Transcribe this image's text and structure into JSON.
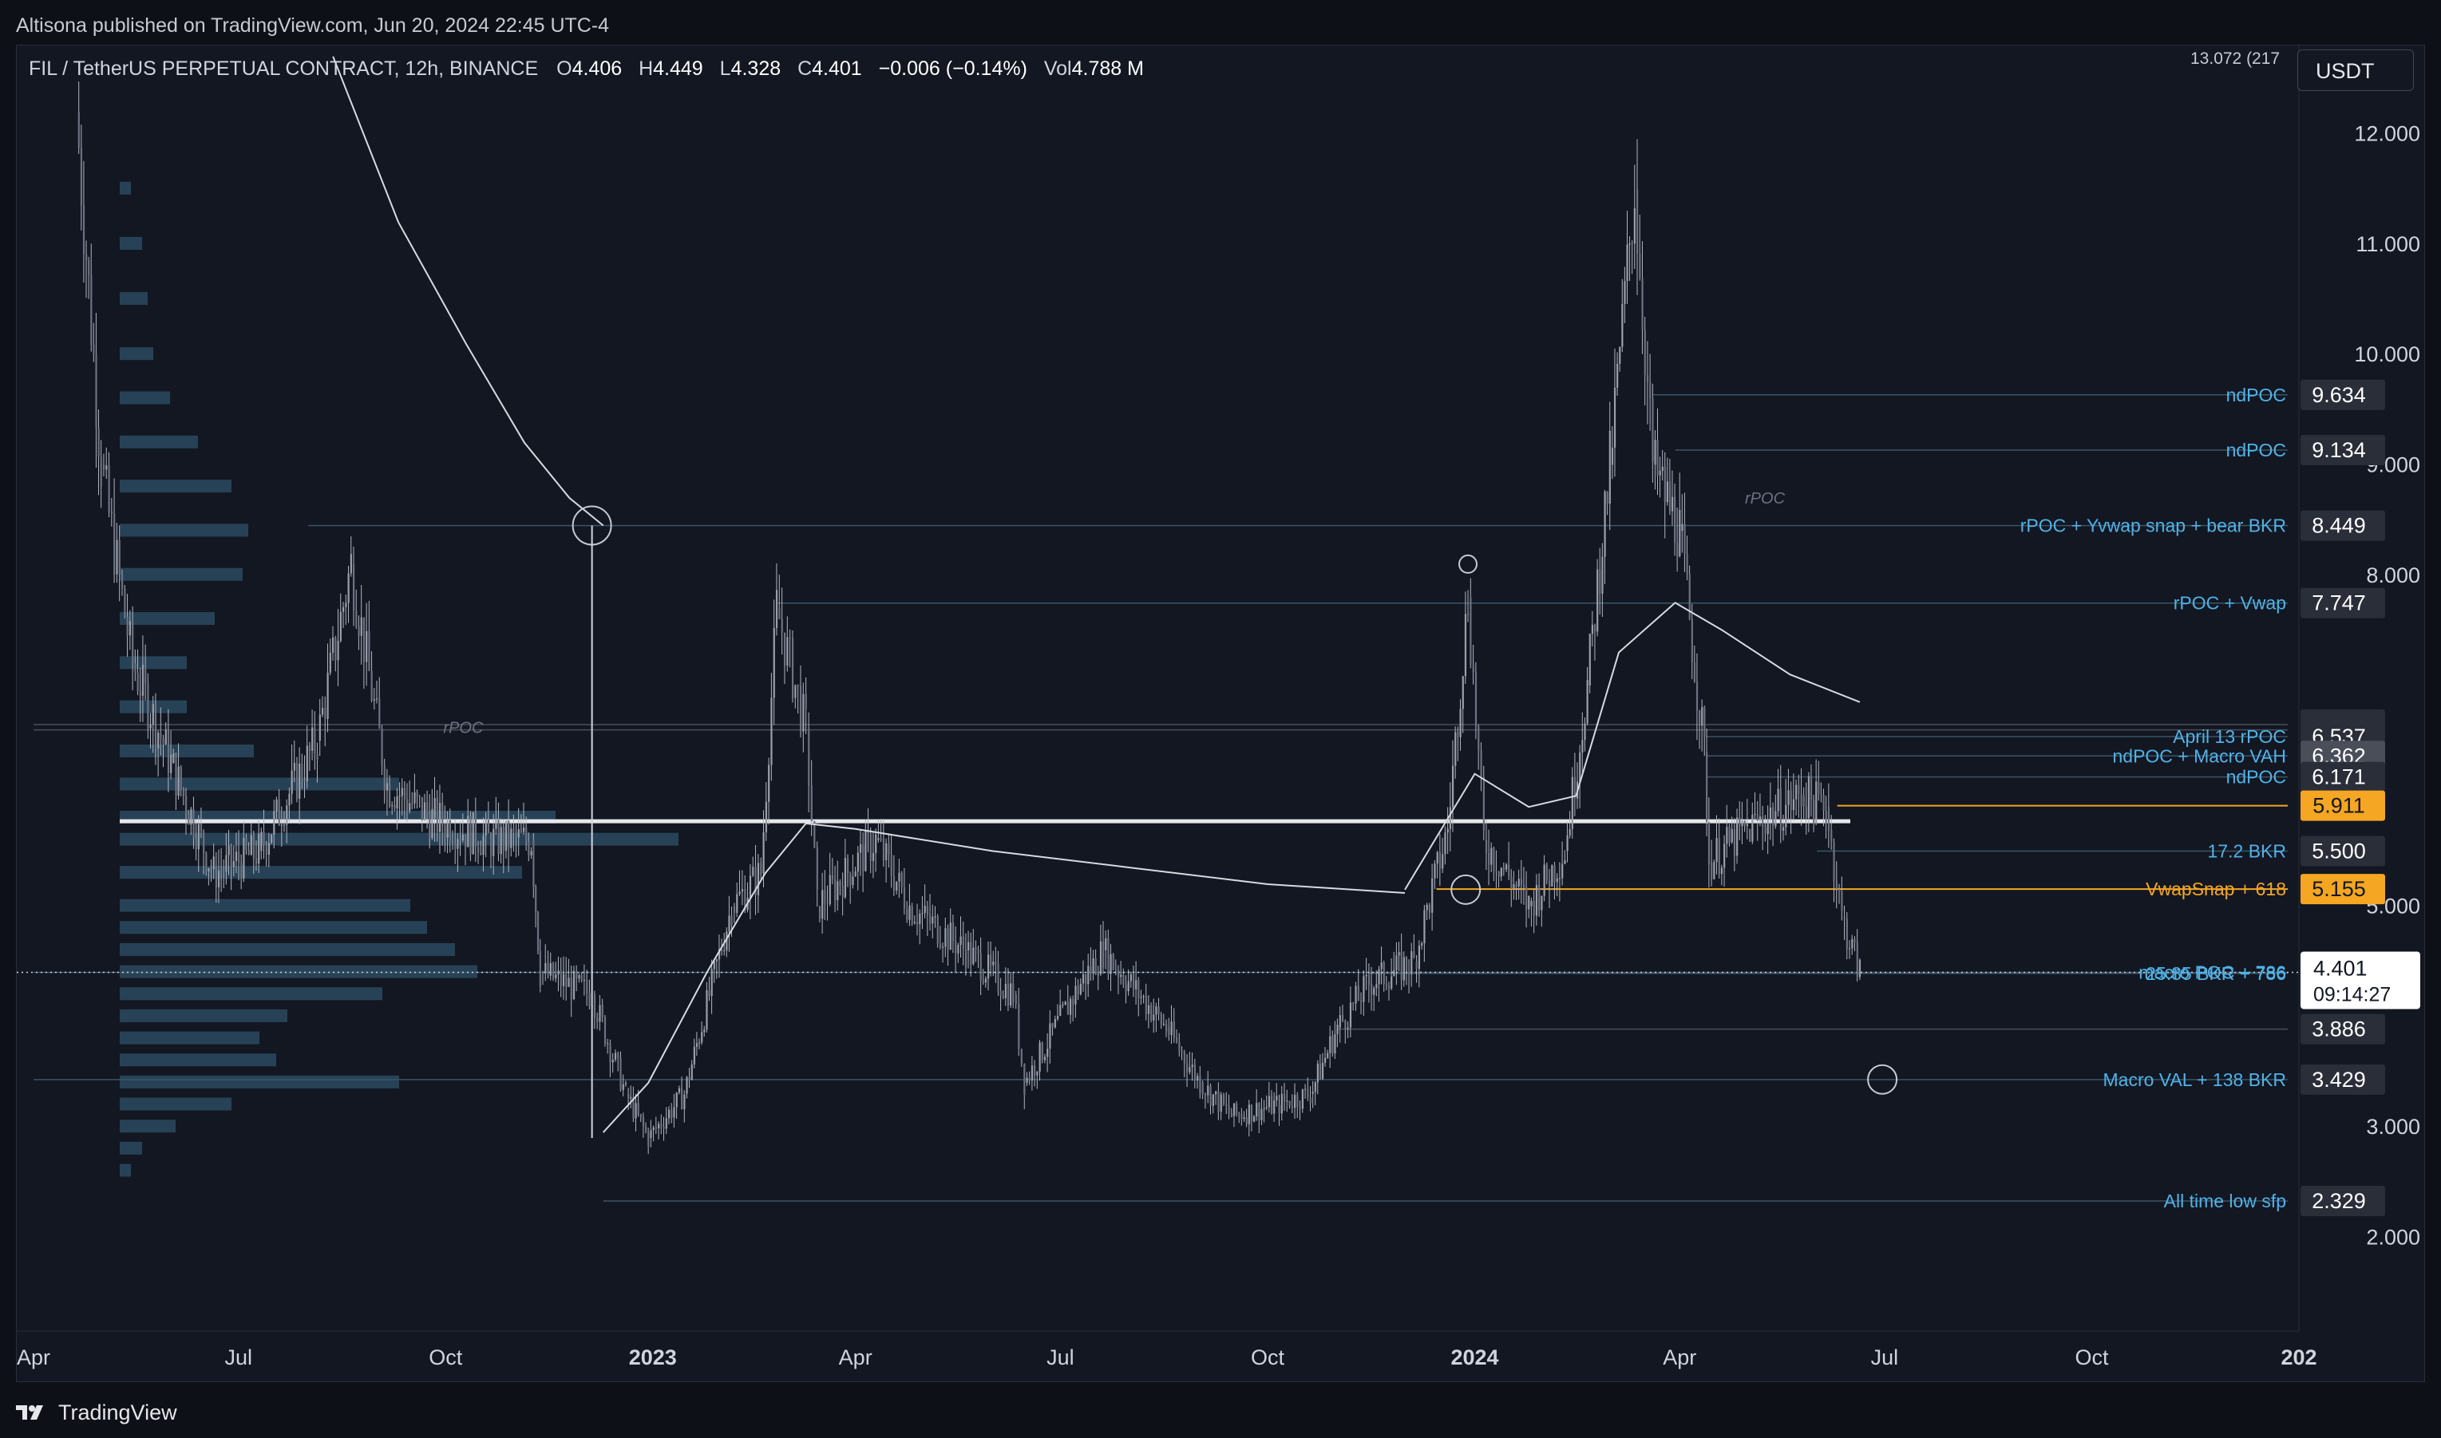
{
  "publish_line": "Altisona published on TradingView.com, Jun 20, 2024 22:45 UTC-4",
  "header": {
    "symbol": "FIL / TetherUS PERPETUAL CONTRACT, 12h, BINANCE",
    "open_label": "O",
    "open": "4.406",
    "high_label": "H",
    "high": "4.449",
    "low_label": "L",
    "low": "4.328",
    "close_label": "C",
    "close": "4.401",
    "change": "−0.006 (−0.14%)",
    "volume_label": "Vol",
    "volume": "4.788 M"
  },
  "currency_button": "USDT",
  "top_right_note": "13.072 (217",
  "footer_brand": "TradingView",
  "colors": {
    "background": "#131722",
    "candle": "#b2b5be",
    "label_blue": "#4fb3e8",
    "label_orange": "#f5a623",
    "profile": "#2b4a5f",
    "vwap": "#d8dae0"
  },
  "chart_data": {
    "type": "candlestick",
    "symbol": "FIL/USDT",
    "timeframe": "12h",
    "y_axis": {
      "ticks": [
        "12.000",
        "11.000",
        "10.000",
        "9.000",
        "8.000",
        "5.000",
        "3.000",
        "2.000"
      ],
      "tick_values": [
        12,
        11,
        10,
        9,
        8,
        5,
        3,
        2
      ],
      "ylim": [
        1.15,
        12.8
      ]
    },
    "x_axis": {
      "ticks": [
        {
          "label": "Apr",
          "date": "2022-04-01",
          "bold": false
        },
        {
          "label": "Jul",
          "date": "2022-07-01",
          "bold": false
        },
        {
          "label": "Oct",
          "date": "2022-10-01",
          "bold": false
        },
        {
          "label": "2023",
          "date": "2023-01-01",
          "bold": true
        },
        {
          "label": "Apr",
          "date": "2023-04-01",
          "bold": false
        },
        {
          "label": "Jul",
          "date": "2023-07-01",
          "bold": false
        },
        {
          "label": "Oct",
          "date": "2023-10-01",
          "bold": false
        },
        {
          "label": "2024",
          "date": "2024-01-01",
          "bold": true
        },
        {
          "label": "Apr",
          "date": "2024-04-01",
          "bold": false
        },
        {
          "label": "Jul",
          "date": "2024-07-01",
          "bold": false
        },
        {
          "label": "Oct",
          "date": "2024-10-01",
          "bold": false
        },
        {
          "label": "202",
          "date": "2025-01-01",
          "bold": true
        }
      ]
    },
    "price_path": [
      {
        "date": "2022-04-20",
        "price": 12.2
      },
      {
        "date": "2022-05-01",
        "price": 9.0
      },
      {
        "date": "2022-05-15",
        "price": 7.2
      },
      {
        "date": "2022-06-01",
        "price": 6.3
      },
      {
        "date": "2022-06-20",
        "price": 5.3
      },
      {
        "date": "2022-07-10",
        "price": 5.5
      },
      {
        "date": "2022-08-05",
        "price": 6.5
      },
      {
        "date": "2022-08-20",
        "price": 8.1
      },
      {
        "date": "2022-09-05",
        "price": 6.1
      },
      {
        "date": "2022-09-25",
        "price": 5.8
      },
      {
        "date": "2022-10-20",
        "price": 5.6
      },
      {
        "date": "2022-11-08",
        "price": 5.6
      },
      {
        "date": "2022-11-12",
        "price": 4.4
      },
      {
        "date": "2022-12-05",
        "price": 4.2
      },
      {
        "date": "2022-12-20",
        "price": 3.3
      },
      {
        "date": "2022-12-30",
        "price": 2.9
      },
      {
        "date": "2023-01-15",
        "price": 3.3
      },
      {
        "date": "2023-02-05",
        "price": 5.0
      },
      {
        "date": "2023-02-18",
        "price": 5.3
      },
      {
        "date": "2023-02-25",
        "price": 7.7
      },
      {
        "date": "2023-03-10",
        "price": 6.6
      },
      {
        "date": "2023-03-15",
        "price": 5.0
      },
      {
        "date": "2023-04-10",
        "price": 5.6
      },
      {
        "date": "2023-04-25",
        "price": 5.0
      },
      {
        "date": "2023-05-20",
        "price": 4.6
      },
      {
        "date": "2023-06-10",
        "price": 4.2
      },
      {
        "date": "2023-06-15",
        "price": 3.4
      },
      {
        "date": "2023-07-10",
        "price": 4.3
      },
      {
        "date": "2023-07-20",
        "price": 4.6
      },
      {
        "date": "2023-08-17",
        "price": 3.9
      },
      {
        "date": "2023-09-01",
        "price": 3.4
      },
      {
        "date": "2023-09-15",
        "price": 3.1
      },
      {
        "date": "2023-10-05",
        "price": 3.2
      },
      {
        "date": "2023-10-20",
        "price": 3.3
      },
      {
        "date": "2023-11-01",
        "price": 3.9
      },
      {
        "date": "2023-11-15",
        "price": 4.3
      },
      {
        "date": "2023-12-05",
        "price": 4.5
      },
      {
        "date": "2023-12-20",
        "price": 5.7
      },
      {
        "date": "2023-12-29",
        "price": 7.8
      },
      {
        "date": "2024-01-05",
        "price": 5.6
      },
      {
        "date": "2024-01-25",
        "price": 5.0
      },
      {
        "date": "2024-02-10",
        "price": 5.5
      },
      {
        "date": "2024-02-20",
        "price": 7.0
      },
      {
        "date": "2024-03-01",
        "price": 9.0
      },
      {
        "date": "2024-03-12",
        "price": 11.5
      },
      {
        "date": "2024-03-20",
        "price": 9.0
      },
      {
        "date": "2024-04-01",
        "price": 8.4
      },
      {
        "date": "2024-04-12",
        "price": 6.4
      },
      {
        "date": "2024-04-14",
        "price": 5.4
      },
      {
        "date": "2024-05-01",
        "price": 5.7
      },
      {
        "date": "2024-05-25",
        "price": 6.0
      },
      {
        "date": "2024-06-05",
        "price": 5.9
      },
      {
        "date": "2024-06-12",
        "price": 4.9
      },
      {
        "date": "2024-06-20",
        "price": 4.4
      }
    ],
    "vwap_curves": [
      {
        "name": "",
        "points": [
          {
            "date": "2022-08-12",
            "price": 12.7
          },
          {
            "date": "2022-09-10",
            "price": 11.2
          },
          {
            "date": "2022-10-10",
            "price": 10.1
          },
          {
            "date": "2022-11-05",
            "price": 9.2
          },
          {
            "date": "2022-11-25",
            "price": 8.7
          },
          {
            "date": "2022-12-10",
            "price": 8.45
          }
        ]
      },
      {
        "name": "",
        "points": [
          {
            "date": "2022-12-10",
            "price": 2.95
          },
          {
            "date": "2022-12-30",
            "price": 3.4
          },
          {
            "date": "2023-01-25",
            "price": 4.4
          },
          {
            "date": "2023-02-20",
            "price": 5.3
          },
          {
            "date": "2023-03-10",
            "price": 5.75
          },
          {
            "date": "2023-04-01",
            "price": 5.7
          },
          {
            "date": "2023-06-01",
            "price": 5.5
          },
          {
            "date": "2023-08-01",
            "price": 5.35
          },
          {
            "date": "2023-10-01",
            "price": 5.2
          },
          {
            "date": "2023-12-01",
            "price": 5.12
          }
        ]
      },
      {
        "name": "",
        "points": [
          {
            "date": "2023-12-01",
            "price": 5.15
          },
          {
            "date": "2024-01-01",
            "price": 6.2
          },
          {
            "date": "2024-01-25",
            "price": 5.9
          },
          {
            "date": "2024-02-15",
            "price": 6.0
          },
          {
            "date": "2024-03-05",
            "price": 7.3
          },
          {
            "date": "2024-03-30",
            "price": 7.75
          },
          {
            "date": "2024-04-20",
            "price": 7.5
          },
          {
            "date": "2024-05-20",
            "price": 7.1
          },
          {
            "date": "2024-06-20",
            "price": 6.85
          }
        ]
      }
    ],
    "levels": [
      {
        "label": "ndPOC",
        "value": "9.634",
        "price": 9.634,
        "style": "blue",
        "start_date": "2024-03-20"
      },
      {
        "label": "ndPOC",
        "value": "9.134",
        "price": 9.134,
        "style": "blue",
        "start_date": "2024-03-30"
      },
      {
        "label": "rPOC + Yvwap snap + bear BKR",
        "value": "8.449",
        "price": 8.449,
        "style": "blue",
        "start_date": "2022-08-01"
      },
      {
        "label": "rPOC + Vwap",
        "value": "7.747",
        "price": 7.747,
        "style": "blue",
        "start_date": "2023-02-25"
      },
      {
        "label": "",
        "value": "6.646",
        "price": 6.646,
        "style": "plain",
        "start_date": "2022-04-01"
      },
      {
        "label": "",
        "value": "6.598",
        "price": 6.598,
        "style": "plain",
        "start_date": "2022-04-01"
      },
      {
        "label": "April 13 rPOC",
        "value": "6.537",
        "price": 6.537,
        "style": "blue",
        "start_date": "2024-04-13"
      },
      {
        "label": "ndPOC + Macro VAH",
        "value": "6.362",
        "price": 6.362,
        "style": "blue",
        "start_date": "2024-04-13"
      },
      {
        "label": "ndPOC",
        "value": "6.171",
        "price": 6.171,
        "style": "blue",
        "start_date": "2024-04-13"
      },
      {
        "label": "",
        "value": "5.911",
        "price": 5.911,
        "style": "orange",
        "start_date": "2024-06-10"
      },
      {
        "label": "17.2 BKR",
        "value": "5.500",
        "price": 5.5,
        "style": "blue",
        "start_date": "2024-06-01"
      },
      {
        "label": "VwapSnap + 618",
        "value": "5.155",
        "price": 5.155,
        "style": "orange",
        "start_date": "2023-12-15"
      },
      {
        "label": "macro POC + 786",
        "value": "4.401",
        "price": 4.401,
        "style": "blue",
        "start_date": "2022-04-01"
      },
      {
        "label": "25.85 BKR + 786",
        "value": "4.391",
        "price": 4.391,
        "style": "blue",
        "start_date": "2023-11-15"
      },
      {
        "label": "",
        "value": "3.886",
        "price": 3.886,
        "style": "plain",
        "start_date": "2023-11-01"
      },
      {
        "label": "Macro VAL + 138 BKR",
        "value": "3.429",
        "price": 3.429,
        "style": "blue",
        "start_date": "2022-04-01"
      },
      {
        "label": "All time low sfp",
        "value": "2.329",
        "price": 2.329,
        "style": "blue",
        "start_date": "2022-12-10"
      }
    ],
    "current_price": {
      "value": "4.401",
      "price": 4.401,
      "countdown": "09:14:27"
    },
    "annotations": [
      {
        "text": "rPOC",
        "date": "2022-09-30",
        "price": 6.62
      },
      {
        "text": "rPOC",
        "date": "2024-04-30",
        "price": 8.7
      }
    ],
    "volume_profile_rows": [
      {
        "price": 11.5,
        "volume": 0.02
      },
      {
        "price": 11.0,
        "volume": 0.04
      },
      {
        "price": 10.5,
        "volume": 0.05
      },
      {
        "price": 10.0,
        "volume": 0.06
      },
      {
        "price": 9.6,
        "volume": 0.09
      },
      {
        "price": 9.2,
        "volume": 0.14
      },
      {
        "price": 8.8,
        "volume": 0.2
      },
      {
        "price": 8.4,
        "volume": 0.23
      },
      {
        "price": 8.0,
        "volume": 0.22
      },
      {
        "price": 7.6,
        "volume": 0.17
      },
      {
        "price": 7.2,
        "volume": 0.12
      },
      {
        "price": 6.8,
        "volume": 0.12
      },
      {
        "price": 6.4,
        "volume": 0.24
      },
      {
        "price": 6.1,
        "volume": 0.5
      },
      {
        "price": 5.8,
        "volume": 0.78
      },
      {
        "price": 5.6,
        "volume": 1.0
      },
      {
        "price": 5.3,
        "volume": 0.72
      },
      {
        "price": 5.0,
        "volume": 0.52
      },
      {
        "price": 4.8,
        "volume": 0.55
      },
      {
        "price": 4.6,
        "volume": 0.6
      },
      {
        "price": 4.4,
        "volume": 0.64
      },
      {
        "price": 4.2,
        "volume": 0.47
      },
      {
        "price": 4.0,
        "volume": 0.3
      },
      {
        "price": 3.8,
        "volume": 0.25
      },
      {
        "price": 3.6,
        "volume": 0.28
      },
      {
        "price": 3.4,
        "volume": 0.5
      },
      {
        "price": 3.2,
        "volume": 0.2
      },
      {
        "price": 3.0,
        "volume": 0.1
      },
      {
        "price": 2.8,
        "volume": 0.04
      },
      {
        "price": 2.6,
        "volume": 0.02
      }
    ],
    "markers": [
      {
        "date": "2022-12-05",
        "price": 8.45,
        "size": "large"
      },
      {
        "date": "2023-12-29",
        "price": 8.1,
        "size": "small"
      },
      {
        "date": "2023-12-28",
        "price": 5.15,
        "size": "medium"
      },
      {
        "date": "2024-06-30",
        "price": 3.43,
        "size": "medium"
      }
    ]
  }
}
